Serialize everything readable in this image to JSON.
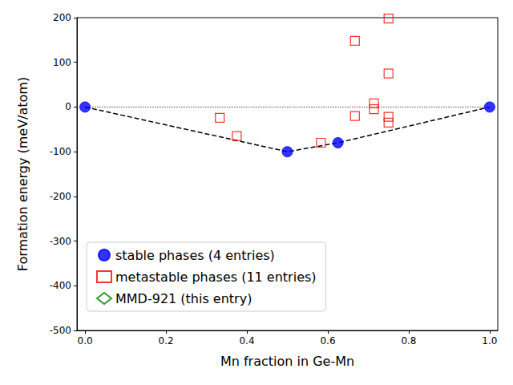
{
  "chart_data": {
    "type": "scatter",
    "x_label": "Mn fraction in Ge-Mn",
    "y_label": "Formation energy (meV/atom)",
    "xlim": [
      -0.02,
      1.02
    ],
    "xticks": [
      {
        "value": 0,
        "label": "0.0"
      },
      0.2,
      0.4,
      0.6,
      0.8,
      {
        "value": 1,
        "label": "1.0"
      }
    ],
    "ylim": [
      -500,
      200
    ],
    "yticks": [
      -500,
      -400,
      -300,
      -200,
      -100,
      0,
      100,
      200
    ],
    "grid": false,
    "legend": "lower left",
    "series": [
      {
        "type": "line",
        "line_style": "dotted",
        "color": "#808080",
        "x": [
          0,
          1
        ],
        "values": [
          0,
          0
        ]
      },
      {
        "type": "line",
        "line_style": "dashed",
        "color": "#000000",
        "x": [
          0,
          0.5,
          0.625,
          1
        ],
        "values": [
          0,
          -100,
          -80,
          0
        ]
      },
      {
        "name": "stable phases (4 entries)",
        "type": "scatter",
        "marker": "circle",
        "color": "#0000ff",
        "x": [
          0,
          0.5,
          0.625,
          1
        ],
        "values": [
          0,
          -100,
          -80,
          0
        ]
      },
      {
        "name": "metastable phases (11 entries)",
        "type": "scatter",
        "marker": "square-open",
        "color": "#ff0000",
        "x": [
          0.333,
          0.375,
          0.583,
          0.667,
          0.667,
          0.714,
          0.714,
          0.75,
          0.75,
          0.75,
          0.75
        ],
        "values": [
          -24,
          -65,
          -80,
          148,
          -20,
          8,
          -5,
          198,
          75,
          -22,
          -35
        ]
      },
      {
        "name": "MMD-921 (this entry)",
        "type": "scatter",
        "marker": "diamond-open",
        "color": "#008000",
        "x": [],
        "values": []
      }
    ]
  }
}
